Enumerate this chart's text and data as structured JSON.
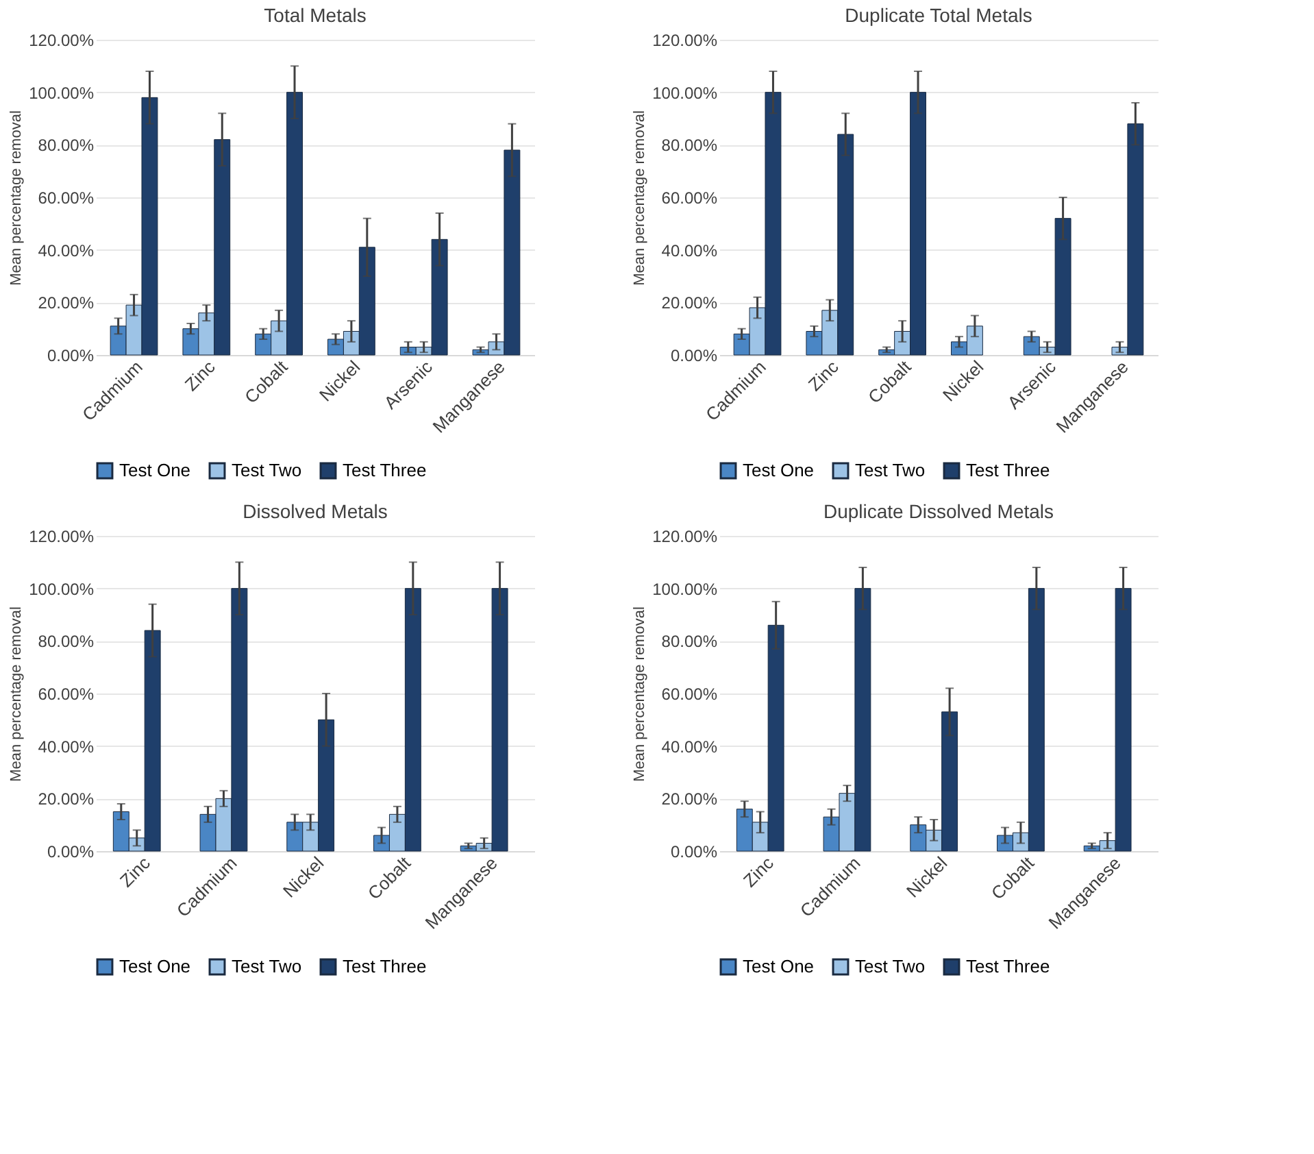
{
  "chart_data": [
    {
      "type": "bar",
      "title": "Total Metals",
      "ylabel": "Mean percentage removal",
      "categories": [
        "Cadmium",
        "Zinc",
        "Cobalt",
        "Nickel",
        "Arsenic",
        "Manganese"
      ],
      "ylim": [
        0,
        120
      ],
      "yticks": [
        {
          "value": 0,
          "label": "0.00%"
        },
        {
          "value": 20,
          "label": "20.00%"
        },
        {
          "value": 40,
          "label": "40.00%"
        },
        {
          "value": 60,
          "label": "60.00%"
        },
        {
          "value": 80,
          "label": "80.00%"
        },
        {
          "value": 100,
          "label": "100.00%"
        },
        {
          "value": 120,
          "label": "120.00%"
        }
      ],
      "grid": "y",
      "legend": "bottom",
      "series": [
        {
          "name": "Test One",
          "color": "#4a86c5",
          "values": [
            11,
            10,
            8,
            6,
            3,
            2
          ],
          "errors": [
            3,
            2,
            2,
            2,
            2,
            1
          ]
        },
        {
          "name": "Test Two",
          "color": "#9dc3e6",
          "values": [
            19,
            16,
            13,
            9,
            3,
            5
          ],
          "errors": [
            4,
            3,
            4,
            4,
            2,
            3
          ]
        },
        {
          "name": "Test Three",
          "color": "#1f3f6b",
          "values": [
            98,
            82,
            100,
            41,
            44,
            78
          ],
          "errors": [
            10,
            10,
            10,
            11,
            10,
            10
          ]
        }
      ]
    },
    {
      "type": "bar",
      "title": "Duplicate Total Metals",
      "ylabel": "Mean percentage removal",
      "categories": [
        "Cadmium",
        "Zinc",
        "Cobalt",
        "Nickel",
        "Arsenic",
        "Manganese"
      ],
      "ylim": [
        0,
        120
      ],
      "yticks": [
        {
          "value": 0,
          "label": "0.00%"
        },
        {
          "value": 20,
          "label": "20.00%"
        },
        {
          "value": 40,
          "label": "40.00%"
        },
        {
          "value": 60,
          "label": "60.00%"
        },
        {
          "value": 80,
          "label": "80.00%"
        },
        {
          "value": 100,
          "label": "100.00%"
        },
        {
          "value": 120,
          "label": "120.00%"
        }
      ],
      "grid": "y",
      "legend": "bottom",
      "series": [
        {
          "name": "Test One",
          "color": "#4a86c5",
          "values": [
            8,
            9,
            2,
            5,
            7,
            null
          ],
          "errors": [
            2,
            2,
            1,
            2,
            2,
            null
          ]
        },
        {
          "name": "Test Two",
          "color": "#9dc3e6",
          "values": [
            18,
            17,
            9,
            11,
            3,
            3
          ],
          "errors": [
            4,
            4,
            4,
            4,
            2,
            2
          ]
        },
        {
          "name": "Test Three",
          "color": "#1f3f6b",
          "values": [
            100,
            84,
            100,
            null,
            52,
            88
          ],
          "errors": [
            8,
            8,
            8,
            null,
            8,
            8
          ]
        }
      ]
    },
    {
      "type": "bar",
      "title": "Dissolved Metals",
      "ylabel": "Mean percentage removal",
      "categories": [
        "Zinc",
        "Cadmium",
        "Nickel",
        "Cobalt",
        "Manganese"
      ],
      "ylim": [
        0,
        120
      ],
      "yticks": [
        {
          "value": 0,
          "label": "0.00%"
        },
        {
          "value": 20,
          "label": "20.00%"
        },
        {
          "value": 40,
          "label": "40.00%"
        },
        {
          "value": 60,
          "label": "60.00%"
        },
        {
          "value": 80,
          "label": "80.00%"
        },
        {
          "value": 100,
          "label": "100.00%"
        },
        {
          "value": 120,
          "label": "120.00%"
        }
      ],
      "grid": "y",
      "legend": "bottom",
      "series": [
        {
          "name": "Test One",
          "color": "#4a86c5",
          "values": [
            15,
            14,
            11,
            6,
            2
          ],
          "errors": [
            3,
            3,
            3,
            3,
            1
          ]
        },
        {
          "name": "Test Two",
          "color": "#9dc3e6",
          "values": [
            5,
            20,
            11,
            14,
            3
          ],
          "errors": [
            3,
            3,
            3,
            3,
            2
          ]
        },
        {
          "name": "Test Three",
          "color": "#1f3f6b",
          "values": [
            84,
            100,
            50,
            100,
            100
          ],
          "errors": [
            10,
            10,
            10,
            10,
            10
          ]
        }
      ]
    },
    {
      "type": "bar",
      "title": "Duplicate Dissolved Metals",
      "ylabel": "Mean percentage removal",
      "categories": [
        "Zinc",
        "Cadmium",
        "Nickel",
        "Cobalt",
        "Manganese"
      ],
      "ylim": [
        0,
        120
      ],
      "yticks": [
        {
          "value": 0,
          "label": "0.00%"
        },
        {
          "value": 20,
          "label": "20.00%"
        },
        {
          "value": 40,
          "label": "40.00%"
        },
        {
          "value": 60,
          "label": "60.00%"
        },
        {
          "value": 80,
          "label": "80.00%"
        },
        {
          "value": 100,
          "label": "100.00%"
        },
        {
          "value": 120,
          "label": "120.00%"
        }
      ],
      "grid": "y",
      "legend": "bottom",
      "series": [
        {
          "name": "Test One",
          "color": "#4a86c5",
          "values": [
            16,
            13,
            10,
            6,
            2
          ],
          "errors": [
            3,
            3,
            3,
            3,
            1
          ]
        },
        {
          "name": "Test Two",
          "color": "#9dc3e6",
          "values": [
            11,
            22,
            8,
            7,
            4
          ],
          "errors": [
            4,
            3,
            4,
            4,
            3
          ]
        },
        {
          "name": "Test Three",
          "color": "#1f3f6b",
          "values": [
            86,
            100,
            53,
            100,
            100
          ],
          "errors": [
            9,
            8,
            9,
            8,
            8
          ]
        }
      ]
    }
  ]
}
